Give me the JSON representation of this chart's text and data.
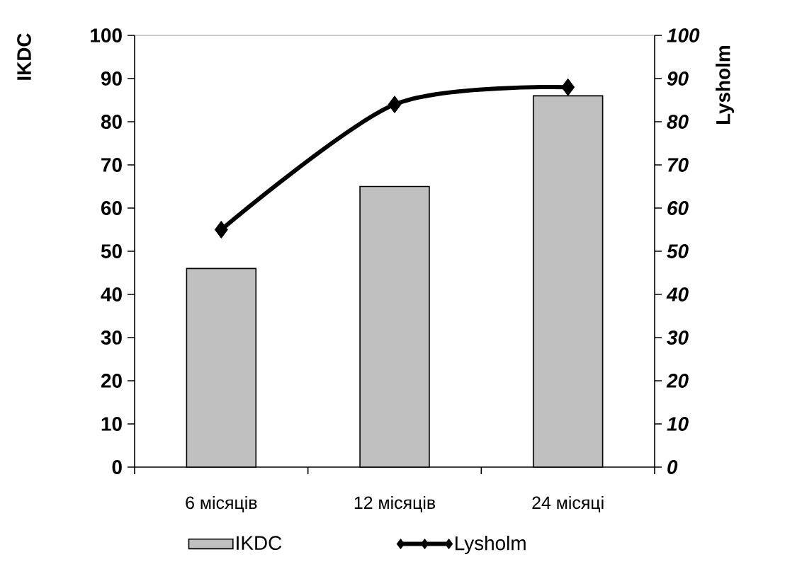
{
  "chart_data": {
    "type": "bar",
    "categories": [
      "6 місяців",
      "12 місяців",
      "24 місяці"
    ],
    "ylabel": "IKDC",
    "y2label": "Lysholm",
    "ylim": [
      0,
      100
    ],
    "yticks": [
      0,
      10,
      20,
      30,
      40,
      50,
      60,
      70,
      80,
      90,
      100
    ],
    "y2lim": [
      0,
      100
    ],
    "y2ticks": [
      0,
      10,
      20,
      30,
      40,
      50,
      60,
      70,
      80,
      90,
      100
    ],
    "grid": false,
    "legend": "bottom",
    "series": [
      {
        "name": "IKDC",
        "color": "#c0c0c0",
        "values": [
          46,
          65,
          86
        ]
      },
      {
        "name": "Lysholm",
        "type": "line",
        "axis": "y2",
        "color": "#000000",
        "marker": "diamond",
        "line_style": "solid",
        "values": [
          55,
          84,
          88
        ]
      }
    ]
  }
}
